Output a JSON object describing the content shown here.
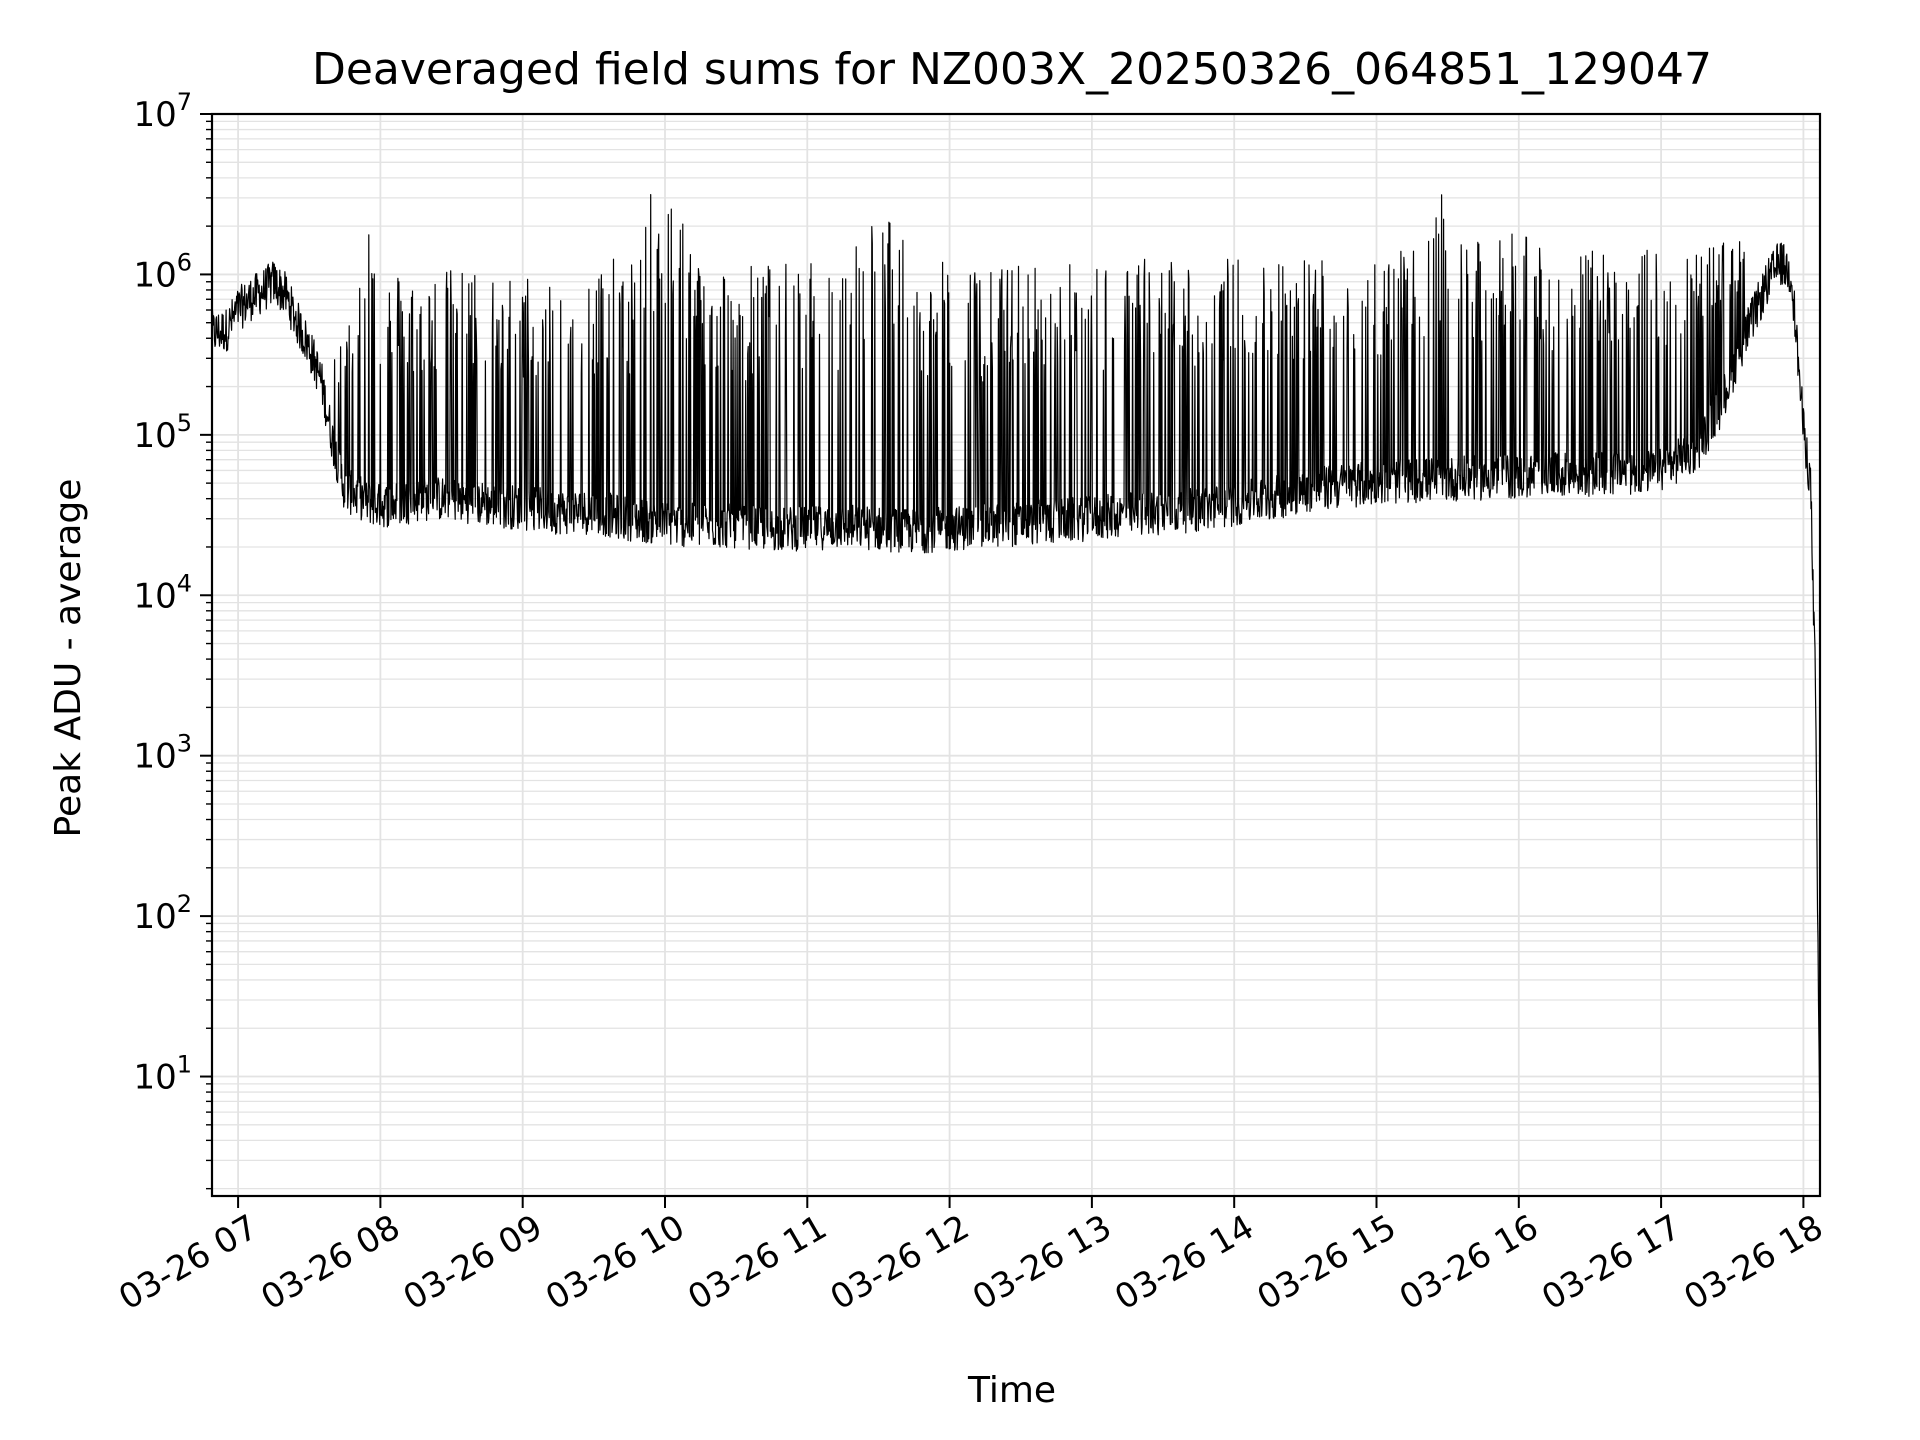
{
  "chart_data": {
    "type": "line",
    "title": "Deaveraged field sums for NZ003X_20250326_064851_129047",
    "xlabel": "Time",
    "ylabel": "Peak ADU - average",
    "yscale": "log",
    "xlim": [
      "03-26 06:49",
      "03-26 18:07"
    ],
    "ylim": [
      1.8,
      10000000
    ],
    "x_ticks": [
      "03-26 07",
      "03-26 08",
      "03-26 09",
      "03-26 10",
      "03-26 11",
      "03-26 12",
      "03-26 13",
      "03-26 14",
      "03-26 15",
      "03-26 16",
      "03-26 17",
      "03-26 18"
    ],
    "y_ticks": [
      {
        "base": "10",
        "exp": "1",
        "value": 10
      },
      {
        "base": "10",
        "exp": "2",
        "value": 100
      },
      {
        "base": "10",
        "exp": "3",
        "value": 1000
      },
      {
        "base": "10",
        "exp": "4",
        "value": 10000
      },
      {
        "base": "10",
        "exp": "5",
        "value": 100000
      },
      {
        "base": "10",
        "exp": "6",
        "value": 1000000
      },
      {
        "base": "10",
        "exp": "7",
        "value": 10000000
      }
    ],
    "grid": true,
    "line_color": "#000000",
    "grid_color": "#e3e3e3",
    "series": [
      {
        "x": [
          "06:49",
          "06:55",
          "07:00",
          "07:05",
          "07:10",
          "07:15",
          "07:20",
          "07:25",
          "07:30",
          "07:35",
          "07:40",
          "07:45",
          "07:50",
          "07:55",
          "08:00",
          "08:10",
          "08:20",
          "08:30",
          "08:45",
          "09:00",
          "09:15",
          "09:30",
          "09:45",
          "10:00",
          "10:15",
          "10:30",
          "10:45",
          "11:00",
          "11:15",
          "11:30",
          "11:45",
          "12:00",
          "12:15",
          "12:30",
          "12:45",
          "13:00",
          "13:15",
          "13:30",
          "13:45",
          "14:00",
          "14:15",
          "14:30",
          "14:45",
          "15:00",
          "15:15",
          "15:30",
          "15:45",
          "16:00",
          "16:15",
          "16:30",
          "16:45",
          "17:00",
          "17:15",
          "17:25",
          "17:35",
          "17:45",
          "17:50",
          "17:55",
          "18:00",
          "18:03",
          "18:05",
          "18:06",
          "18:07"
        ],
        "baseline": [
          430000,
          450000,
          600000,
          700000,
          780000,
          900000,
          750000,
          500000,
          350000,
          220000,
          90000,
          45000,
          42000,
          38000,
          36000,
          38000,
          40000,
          40000,
          37000,
          35000,
          33000,
          33000,
          30000,
          28000,
          27000,
          27000,
          26000,
          26000,
          27000,
          26000,
          25000,
          26000,
          27000,
          28000,
          29000,
          30000,
          32000,
          33000,
          34000,
          37000,
          40000,
          45000,
          48000,
          50000,
          52000,
          53000,
          54000,
          55000,
          56000,
          57000,
          58000,
          60000,
          80000,
          150000,
          400000,
          900000,
          1200000,
          1000000,
          110000,
          50000,
          3000,
          100,
          4
        ],
        "peaks": [
          500000,
          520000,
          700000,
          800000,
          900000,
          1100000,
          1000000,
          800000,
          600000,
          500000,
          500000,
          400000,
          1000000,
          3500000,
          1000000,
          1100000,
          1000000,
          1100000,
          1100000,
          1000000,
          1100000,
          1200000,
          1300000,
          6000000,
          1200000,
          1200000,
          1200000,
          1200000,
          1200000,
          3400000,
          1200000,
          1200000,
          1100000,
          1200000,
          1200000,
          1200000,
          1300000,
          1300000,
          1300000,
          1300000,
          1300000,
          1400000,
          1400000,
          1400000,
          1400000,
          3700000,
          1400000,
          2100000,
          1400000,
          1400000,
          1400000,
          1500000,
          1500000,
          1600000,
          1700000,
          1600000,
          1500000,
          1200000,
          100000,
          60000,
          3000,
          100,
          4
        ],
        "spiky": true
      }
    ]
  }
}
